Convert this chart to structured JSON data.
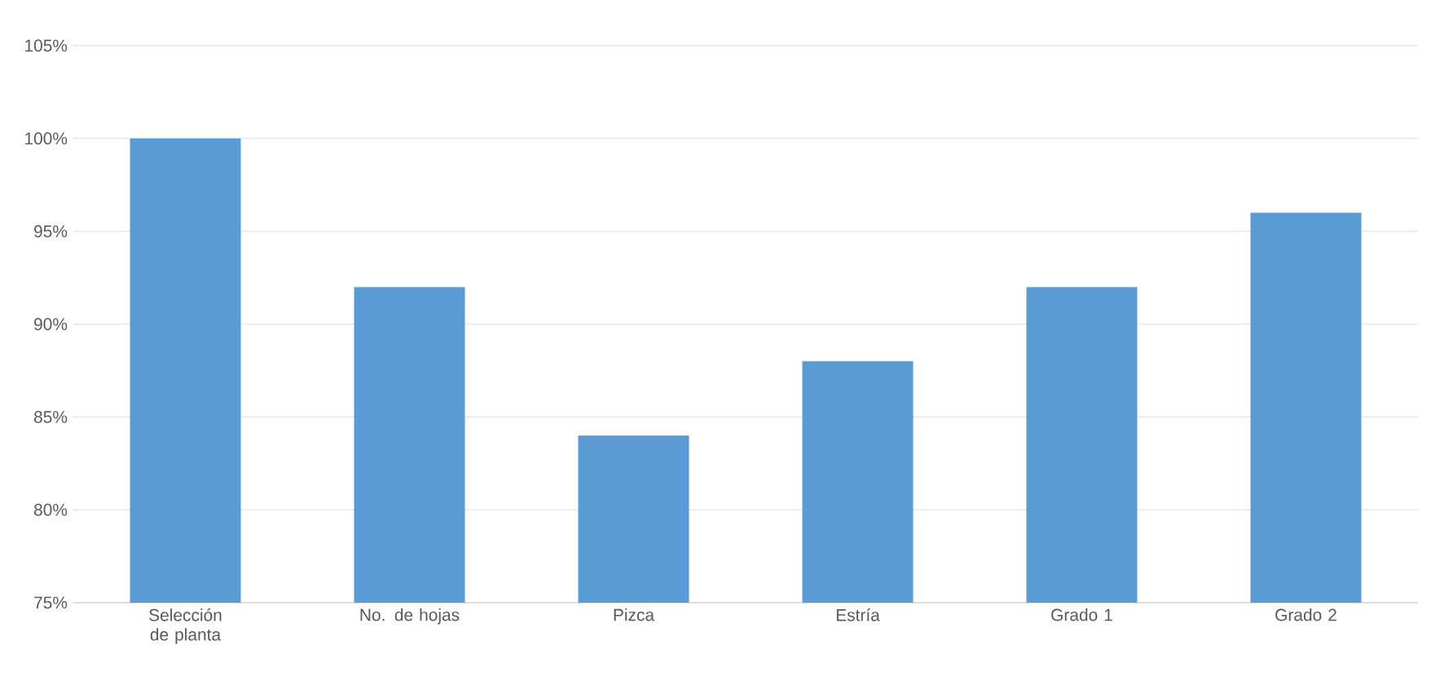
{
  "chart_data": {
    "type": "bar",
    "categories": [
      "Selección de planta",
      "No. de hojas",
      "Pizca",
      "Estría",
      "Grado 1",
      "Grado 2"
    ],
    "values": [
      100,
      92,
      84,
      88,
      92,
      96
    ],
    "color": "#5b9bd5",
    "ylim": [
      75,
      105
    ],
    "yticks": [
      {
        "value": 75,
        "label": "75%"
      },
      {
        "value": 80,
        "label": "80%"
      },
      {
        "value": 85,
        "label": "85%"
      },
      {
        "value": 90,
        "label": "90%"
      },
      {
        "value": 95,
        "label": "95%"
      },
      {
        "value": 100,
        "label": "100%"
      },
      {
        "value": 105,
        "label": "105%"
      }
    ],
    "grid": "y"
  }
}
